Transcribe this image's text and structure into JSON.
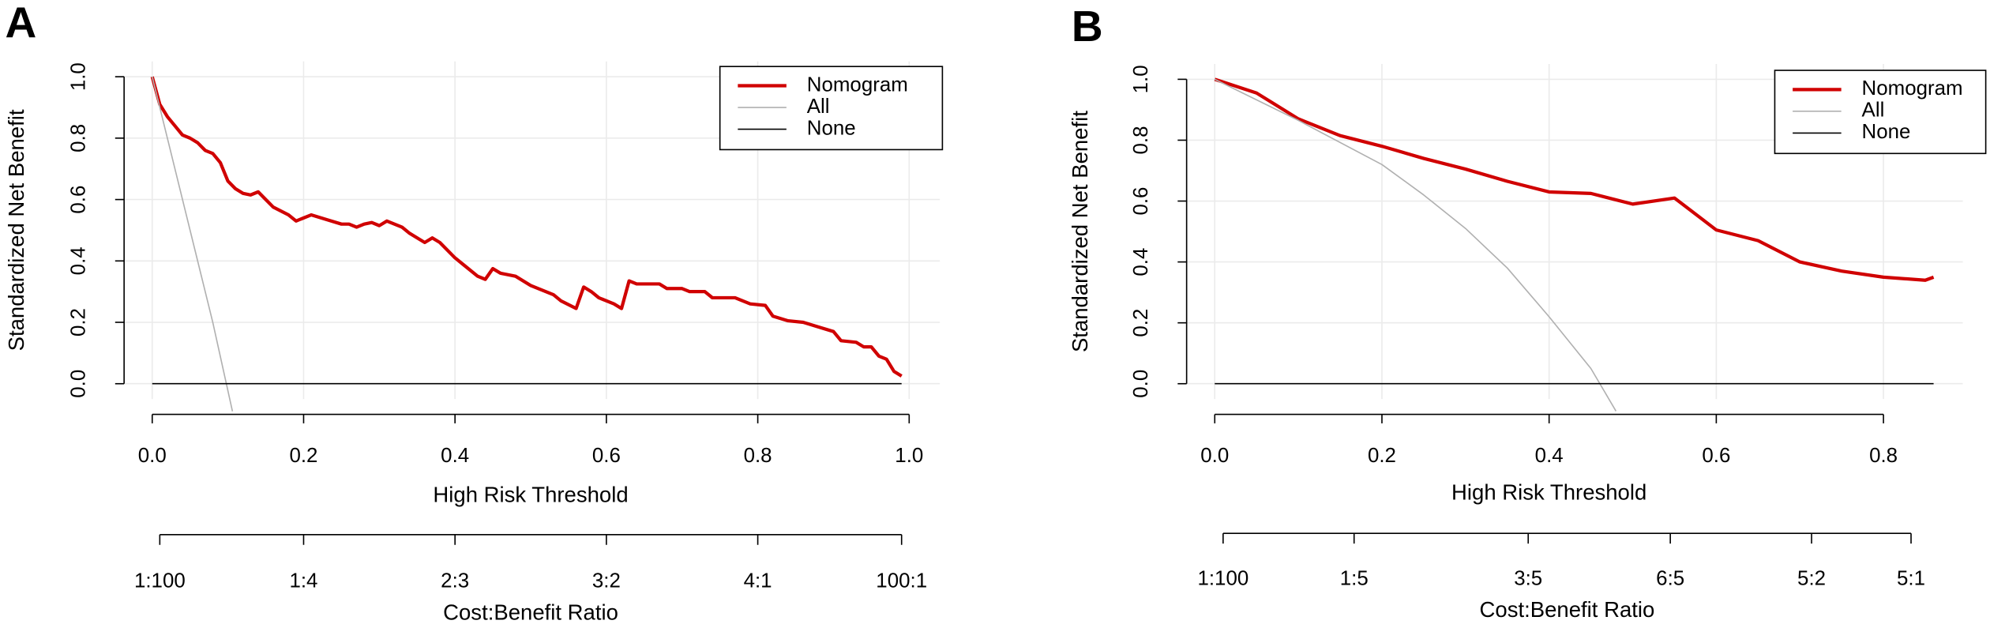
{
  "chart_data": [
    {
      "type": "line",
      "panel_label": "A",
      "x_label": "High Risk Threshold",
      "y_label": "Standardized Net Benefit",
      "xlim": [
        0,
        1
      ],
      "ylim": [
        0,
        1
      ],
      "xticks": [
        {
          "value": 0,
          "label": "0.0"
        },
        0.2,
        0.4,
        0.6,
        0.8,
        {
          "value": 1,
          "label": "1.0"
        }
      ],
      "yticks": [
        {
          "value": 0,
          "label": "0.0"
        },
        0.2,
        0.4,
        0.6,
        0.8,
        {
          "value": 1,
          "label": "1.0"
        }
      ],
      "x2_label": "Cost:Benefit Ratio",
      "x2ticks": [
        {
          "value": 0.01,
          "label": "1:100"
        },
        {
          "value": 0.2,
          "label": "1:4"
        },
        {
          "value": 0.4,
          "label": "2:3"
        },
        {
          "value": 0.6,
          "label": "3:2"
        },
        {
          "value": 0.8,
          "label": "4:1"
        },
        {
          "value": 0.99,
          "label": "100:1"
        }
      ],
      "grid": true,
      "legend": "top-right",
      "series": [
        {
          "name": "Nomogram",
          "color": "#d00000",
          "x": [
            0,
            0.01,
            0.02,
            0.03,
            0.04,
            0.05,
            0.06,
            0.07,
            0.08,
            0.09,
            0.1,
            0.11,
            0.12,
            0.13,
            0.14,
            0.15,
            0.16,
            0.18,
            0.19,
            0.21,
            0.23,
            0.25,
            0.26,
            0.27,
            0.28,
            0.29,
            0.3,
            0.31,
            0.32,
            0.33,
            0.34,
            0.36,
            0.37,
            0.38,
            0.4,
            0.41,
            0.43,
            0.44,
            0.45,
            0.46,
            0.48,
            0.5,
            0.52,
            0.53,
            0.54,
            0.56,
            0.57,
            0.58,
            0.59,
            0.61,
            0.62,
            0.63,
            0.64,
            0.67,
            0.68,
            0.7,
            0.71,
            0.73,
            0.74,
            0.77,
            0.79,
            0.81,
            0.82,
            0.84,
            0.86,
            0.88,
            0.9,
            0.91,
            0.93,
            0.94,
            0.95,
            0.96,
            0.97,
            0.98,
            0.99
          ],
          "values": [
            1,
            0.91,
            0.87,
            0.84,
            0.81,
            0.8,
            0.785,
            0.76,
            0.75,
            0.72,
            0.66,
            0.635,
            0.62,
            0.615,
            0.625,
            0.6,
            0.575,
            0.55,
            0.53,
            0.55,
            0.535,
            0.52,
            0.52,
            0.51,
            0.52,
            0.525,
            0.515,
            0.53,
            0.52,
            0.51,
            0.49,
            0.46,
            0.475,
            0.46,
            0.41,
            0.39,
            0.35,
            0.34,
            0.375,
            0.36,
            0.35,
            0.32,
            0.3,
            0.29,
            0.27,
            0.245,
            0.315,
            0.3,
            0.28,
            0.26,
            0.245,
            0.335,
            0.325,
            0.325,
            0.31,
            0.31,
            0.3,
            0.3,
            0.28,
            0.28,
            0.26,
            0.255,
            0.22,
            0.205,
            0.2,
            0.185,
            0.17,
            0.14,
            0.135,
            0.12,
            0.12,
            0.09,
            0.08,
            0.04,
            0.025
          ]
        },
        {
          "name": "All",
          "color": "#b0b0b0",
          "x": [
            0,
            0.02,
            0.05,
            0.08,
            0.106
          ],
          "values": [
            1,
            0.8,
            0.5,
            0.2,
            -0.09
          ]
        },
        {
          "name": "None",
          "color": "#000000",
          "x": [
            0,
            0.99
          ],
          "values": [
            0,
            0
          ]
        }
      ]
    },
    {
      "type": "line",
      "panel_label": "B",
      "x_label": "High Risk Threshold",
      "y_label": "Standardized Net Benefit",
      "xlim": [
        0,
        0.8
      ],
      "ylim": [
        0,
        1
      ],
      "xticks": [
        {
          "value": 0,
          "label": "0.0"
        },
        0.2,
        0.4,
        0.6,
        0.8
      ],
      "yticks": [
        {
          "value": 0,
          "label": "0.0"
        },
        0.2,
        0.4,
        0.6,
        0.8,
        {
          "value": 1,
          "label": "1.0"
        }
      ],
      "x2_label": "Cost:Benefit Ratio",
      "x2ticks": [
        {
          "value": 0.01,
          "label": "1:100"
        },
        {
          "value": 0.1667,
          "label": "1:5"
        },
        {
          "value": 0.375,
          "label": "3:5"
        },
        {
          "value": 0.545,
          "label": "6:5"
        },
        {
          "value": 0.714,
          "label": "5:2"
        },
        {
          "value": 0.833,
          "label": "5:1"
        }
      ],
      "grid": true,
      "legend": "top-right",
      "series": [
        {
          "name": "Nomogram",
          "color": "#d00000",
          "x": [
            0,
            0.05,
            0.1,
            0.15,
            0.2,
            0.25,
            0.3,
            0.35,
            0.4,
            0.45,
            0.5,
            0.55,
            0.6,
            0.65,
            0.7,
            0.75,
            0.8,
            0.85,
            0.86
          ],
          "values": [
            1,
            0.955,
            0.87,
            0.815,
            0.78,
            0.74,
            0.705,
            0.665,
            0.63,
            0.625,
            0.59,
            0.61,
            0.505,
            0.47,
            0.4,
            0.37,
            0.35,
            0.34,
            0.35
          ]
        },
        {
          "name": "All",
          "color": "#b0b0b0",
          "x": [
            0,
            0.1,
            0.2,
            0.25,
            0.3,
            0.35,
            0.4,
            0.45,
            0.48
          ],
          "values": [
            1,
            0.865,
            0.72,
            0.62,
            0.51,
            0.38,
            0.22,
            0.05,
            -0.09
          ]
        },
        {
          "name": "None",
          "color": "#000000",
          "x": [
            0,
            0.86
          ],
          "values": [
            0,
            0
          ]
        }
      ]
    }
  ]
}
